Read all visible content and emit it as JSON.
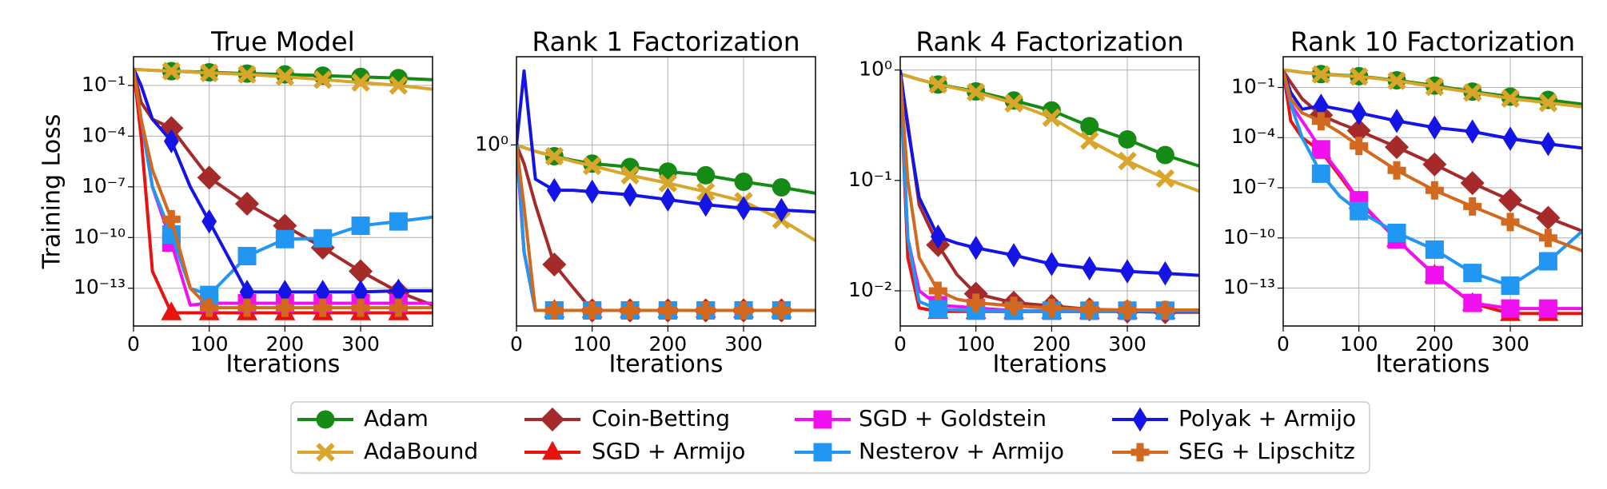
{
  "chart_data": [
    {
      "type": "line",
      "title": "True Model",
      "ylabel": "Training Loss",
      "xlabel": "Iterations",
      "log_y": true,
      "grid": true,
      "x": [
        0,
        10,
        25,
        50,
        75,
        100,
        150,
        200,
        250,
        300,
        350,
        395
      ],
      "xlim": [
        0,
        395
      ],
      "xticks": [
        0,
        100,
        200,
        300
      ],
      "ylim": [
        5.8e-16,
        5
      ],
      "yticks": [
        {
          "value": 0.1,
          "label": "10⁻¹"
        },
        {
          "value": 0.0001,
          "label": "10⁻⁴"
        },
        {
          "value": 1e-07,
          "label": "10⁻⁷"
        },
        {
          "value": 1e-10,
          "label": "10⁻¹⁰"
        },
        {
          "value": 1e-13,
          "label": "10⁻¹³"
        }
      ],
      "series": [
        {
          "name": "Adam",
          "color": "#158a15",
          "marker": "circle",
          "values": [
            0.9,
            0.85,
            0.78,
            0.7,
            0.65,
            0.6,
            0.5,
            0.45,
            0.38,
            0.32,
            0.27,
            0.22
          ]
        },
        {
          "name": "AdaBound",
          "color": "#d9a52b",
          "marker": "x",
          "values": [
            0.9,
            0.85,
            0.78,
            0.7,
            0.62,
            0.55,
            0.45,
            0.33,
            0.22,
            0.15,
            0.1,
            0.06
          ]
        },
        {
          "name": "Coin-Betting",
          "color": "#a52a2a",
          "marker": "diamond",
          "values": [
            1,
            0.01,
            0.001,
            0.0003,
            1e-05,
            3.5e-07,
            1e-08,
            5e-10,
            2.5e-11,
            1e-12,
            6e-14,
            1e-14
          ]
        },
        {
          "name": "SGD + Armijo",
          "color": "#e8120f",
          "marker": "triangle",
          "values": [
            1,
            0.0001,
            1e-12,
            3.5e-15,
            3.5e-15,
            3.5e-15,
            3.5e-15,
            3.5e-15,
            3.5e-15,
            3.5e-15,
            3.5e-15,
            3.5e-15
          ]
        },
        {
          "name": "SGD + Goldstein",
          "color": "#f010f0",
          "marker": "square",
          "values": [
            1,
            0.001,
            1e-07,
            5e-11,
            1e-14,
            1.3e-14,
            1.3e-14,
            1.3e-14,
            1.3e-14,
            1.3e-14,
            1.3e-14,
            1.3e-14
          ]
        },
        {
          "name": "Nesterov + Armijo",
          "color": "#2196f3",
          "marker": "square",
          "values": [
            1,
            0.001,
            1e-07,
            1.5e-10,
            1e-13,
            4e-14,
            8e-12,
            8e-11,
            9e-11,
            5e-10,
            9e-10,
            1.6e-09
          ]
        },
        {
          "name": "Polyak + Armijo",
          "color": "#1414e6",
          "marker": "thin_diamond",
          "values": [
            1,
            0.1,
            0.001,
            5e-05,
            1e-07,
            9e-10,
            6e-14,
            6e-14,
            6e-14,
            6e-14,
            7e-14,
            7e-14
          ]
        },
        {
          "name": "SEG + Lipschitz",
          "color": "#d2691e",
          "marker": "plus",
          "values": [
            1,
            0.001,
            1e-06,
            1.2e-09,
            1e-13,
            7e-15,
            7e-15,
            7e-15,
            7e-15,
            7e-15,
            7e-15,
            7e-15
          ]
        }
      ]
    },
    {
      "type": "line",
      "title": "Rank 1 Factorization",
      "xlabel": "Iterations",
      "log_y": true,
      "grid": true,
      "x": [
        0,
        10,
        25,
        50,
        75,
        100,
        150,
        200,
        250,
        300,
        350,
        395
      ],
      "xlim": [
        0,
        395
      ],
      "xticks": [
        0,
        100,
        200,
        300
      ],
      "ylim": [
        0.13,
        2.7
      ],
      "yticks": [
        {
          "value": 1,
          "label": "10⁰"
        }
      ],
      "series": [
        {
          "color": "#158a15",
          "marker": "circle",
          "values": [
            1,
            0.97,
            0.93,
            0.88,
            0.84,
            0.81,
            0.78,
            0.74,
            0.71,
            0.66,
            0.62,
            0.58
          ]
        },
        {
          "color": "#d9a52b",
          "marker": "x",
          "values": [
            1,
            0.97,
            0.93,
            0.88,
            0.83,
            0.79,
            0.71,
            0.65,
            0.59,
            0.53,
            0.43,
            0.34
          ]
        },
        {
          "color": "#a52a2a",
          "marker": "diamond",
          "values": [
            1,
            0.81,
            0.51,
            0.26,
            0.2,
            0.155,
            0.155,
            0.155,
            0.155,
            0.155,
            0.155,
            0.155
          ]
        },
        {
          "color": "#e8120f",
          "marker": "triangle",
          "values": [
            1,
            0.3,
            0.155,
            0.155,
            0.155,
            0.155,
            0.155,
            0.155,
            0.155,
            0.155,
            0.155,
            0.155
          ]
        },
        {
          "color": "#f010f0",
          "marker": "square",
          "values": [
            1,
            0.3,
            0.155,
            0.155,
            0.155,
            0.155,
            0.155,
            0.155,
            0.155,
            0.155,
            0.155,
            0.155
          ]
        },
        {
          "color": "#2196f3",
          "marker": "square",
          "values": [
            1.1,
            0.3,
            0.155,
            0.155,
            0.155,
            0.155,
            0.155,
            0.155,
            0.155,
            0.155,
            0.155,
            0.155
          ]
        },
        {
          "color": "#1414e6",
          "marker": "thin_diamond",
          "values": [
            1,
            2.3,
            0.68,
            0.6,
            0.6,
            0.59,
            0.57,
            0.54,
            0.51,
            0.49,
            0.48,
            0.47
          ]
        },
        {
          "color": "#d2691e",
          "marker": "plus",
          "values": [
            1,
            0.5,
            0.155,
            0.155,
            0.155,
            0.155,
            0.155,
            0.155,
            0.155,
            0.155,
            0.155,
            0.155
          ]
        }
      ]
    },
    {
      "type": "line",
      "title": "Rank 4 Factorization",
      "xlabel": "Iterations",
      "log_y": true,
      "grid": true,
      "x": [
        0,
        10,
        25,
        50,
        75,
        100,
        150,
        200,
        250,
        300,
        350,
        395
      ],
      "xlim": [
        0,
        395
      ],
      "xticks": [
        0,
        100,
        200,
        300
      ],
      "ylim": [
        0.0048,
        1.32
      ],
      "yticks": [
        {
          "value": 1,
          "label": "10⁰"
        },
        {
          "value": 0.1,
          "label": "10⁻¹"
        },
        {
          "value": 0.01,
          "label": "10⁻²"
        }
      ],
      "series": [
        {
          "color": "#158a15",
          "marker": "circle",
          "values": [
            0.92,
            0.88,
            0.82,
            0.74,
            0.69,
            0.64,
            0.53,
            0.43,
            0.31,
            0.235,
            0.17,
            0.135
          ]
        },
        {
          "color": "#d9a52b",
          "marker": "x",
          "values": [
            0.92,
            0.88,
            0.82,
            0.74,
            0.68,
            0.63,
            0.5,
            0.37,
            0.23,
            0.15,
            0.104,
            0.08
          ]
        },
        {
          "color": "#a52a2a",
          "marker": "diamond",
          "values": [
            0.9,
            0.33,
            0.06,
            0.026,
            0.014,
            0.0094,
            0.0078,
            0.0073,
            0.0068,
            0.0065,
            0.0064,
            0.0064
          ]
        },
        {
          "color": "#e8120f",
          "marker": "triangle",
          "values": [
            0.9,
            0.02,
            0.007,
            0.0065,
            0.0065,
            0.0065,
            0.0065,
            0.0065,
            0.0065,
            0.0065,
            0.0065,
            0.0065
          ]
        },
        {
          "color": "#f010f0",
          "marker": "square",
          "values": [
            0.9,
            0.03,
            0.01,
            0.0074,
            0.0072,
            0.007,
            0.0066,
            0.0066,
            0.0066,
            0.0066,
            0.0066,
            0.0066
          ]
        },
        {
          "color": "#2196f3",
          "marker": "square",
          "values": [
            0.9,
            0.03,
            0.008,
            0.0068,
            0.0067,
            0.0066,
            0.0066,
            0.0066,
            0.0066,
            0.0066,
            0.0066,
            0.0066
          ]
        },
        {
          "color": "#1414e6",
          "marker": "thin_diamond",
          "values": [
            1,
            0.3,
            0.07,
            0.031,
            0.027,
            0.0245,
            0.021,
            0.0175,
            0.016,
            0.015,
            0.0144,
            0.0138
          ]
        },
        {
          "color": "#d2691e",
          "marker": "plus",
          "values": [
            0.9,
            0.1,
            0.02,
            0.01,
            0.0084,
            0.0078,
            0.0073,
            0.007,
            0.0068,
            0.0067,
            0.0067,
            0.0067
          ]
        }
      ]
    },
    {
      "type": "line",
      "title": "Rank 10 Factorization",
      "xlabel": "Iterations",
      "log_y": true,
      "grid": true,
      "x": [
        0,
        10,
        25,
        50,
        75,
        100,
        150,
        200,
        250,
        300,
        350,
        395
      ],
      "xlim": [
        0,
        395
      ],
      "xticks": [
        0,
        100,
        200,
        300
      ],
      "ylim": [
        5.4e-16,
        6.9
      ],
      "yticks": [
        {
          "value": 0.1,
          "label": "10⁻¹"
        },
        {
          "value": 0.0001,
          "label": "10⁻⁴"
        },
        {
          "value": 1e-07,
          "label": "10⁻⁷"
        },
        {
          "value": 1e-10,
          "label": "10⁻¹⁰"
        },
        {
          "value": 1e-13,
          "label": "10⁻¹³"
        }
      ],
      "series": [
        {
          "color": "#158a15",
          "marker": "circle",
          "values": [
            1.1,
            1,
            0.8,
            0.63,
            0.55,
            0.47,
            0.27,
            0.13,
            0.057,
            0.028,
            0.018,
            0.01
          ]
        },
        {
          "color": "#d9a52b",
          "marker": "x",
          "values": [
            1.1,
            1,
            0.8,
            0.6,
            0.52,
            0.45,
            0.25,
            0.11,
            0.05,
            0.022,
            0.012,
            0.007
          ]
        },
        {
          "color": "#a52a2a",
          "marker": "diamond",
          "values": [
            1,
            0.2,
            0.021,
            0.0022,
            0.0007,
            0.00026,
            2.7e-05,
            2.5e-06,
            1.9e-07,
            1.8e-08,
            1.6e-09,
            2.6e-10
          ]
        },
        {
          "color": "#e8120f",
          "marker": "triangle",
          "values": [
            1,
            0.001,
            0.0001,
            1.5e-05,
            5e-07,
            1.5e-08,
            8e-11,
            6e-13,
            1.2e-14,
            3e-15,
            3e-15,
            3e-15
          ]
        },
        {
          "color": "#f010f0",
          "marker": "square",
          "values": [
            1,
            0.01,
            0.001,
            2e-05,
            7e-07,
            1.8e-08,
            8e-11,
            6e-13,
            1.3e-14,
            6e-15,
            6e-15,
            6e-15
          ]
        },
        {
          "color": "#2196f3",
          "marker": "square",
          "values": [
            1,
            0.01,
            0.0001,
            7e-07,
            3e-08,
            4e-09,
            2e-10,
            2e-11,
            8e-13,
            1.4e-13,
            4e-12,
            2.5e-10
          ]
        },
        {
          "color": "#1414e6",
          "marker": "thin_diamond",
          "values": [
            1,
            0.05,
            0.005,
            0.008,
            0.005,
            0.003,
            0.001,
            0.0004,
            0.00023,
            8.6e-05,
            4.2e-05,
            2.4e-05
          ]
        },
        {
          "color": "#d2691e",
          "marker": "plus",
          "values": [
            1,
            0.02,
            0.003,
            0.00095,
            0.0002,
            3.2e-05,
            1.1e-06,
            7e-08,
            7.6e-09,
            9e-10,
            1e-10,
            1.7e-11
          ]
        }
      ]
    }
  ]
}
